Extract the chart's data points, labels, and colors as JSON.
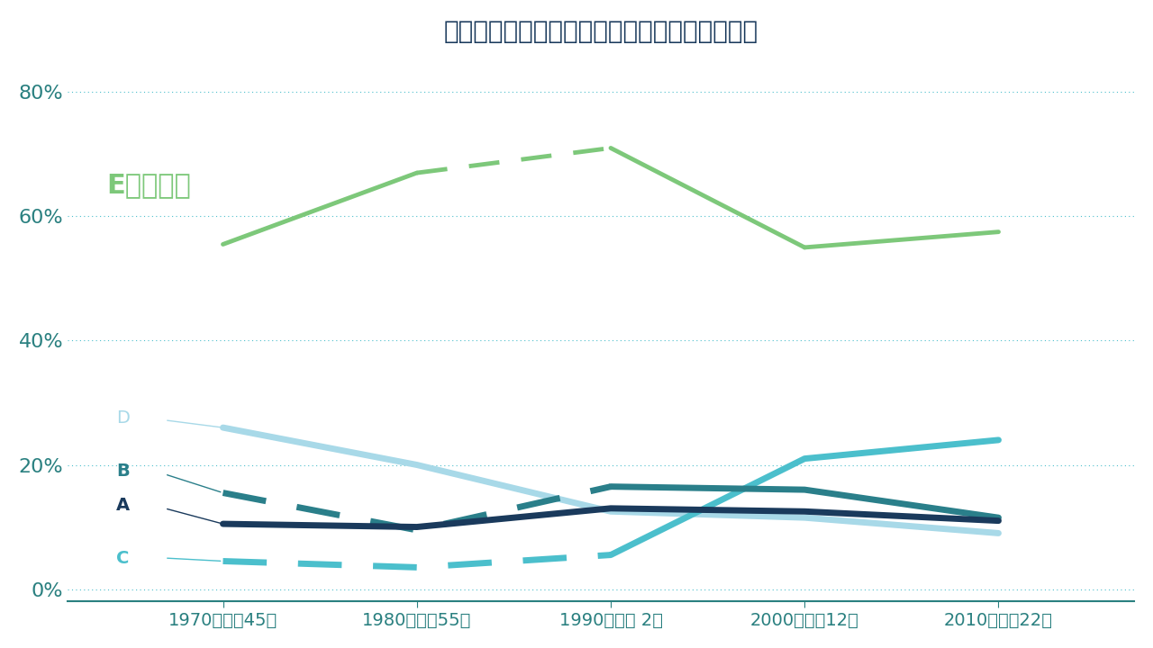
{
  "title": "通勤・通学の利用交通手段別人口割合：東京都",
  "x_labels": [
    "1970（昭和45）",
    "1980（昭和55）",
    "1990（平成 2）",
    "2000（平成12）",
    "2010（平成22）"
  ],
  "x_values": [
    1970,
    1980,
    1990,
    2000,
    2010
  ],
  "series": {
    "E": {
      "values": [
        55.5,
        67.0,
        71.0,
        55.0,
        57.5
      ],
      "color": "#7dc87a",
      "linewidth": 3.5
    },
    "A": {
      "values": [
        10.5,
        10.0,
        13.0,
        12.5,
        11.0
      ],
      "color": "#1a3a5c",
      "linewidth": 5.0
    },
    "B": {
      "values": [
        15.5,
        9.5,
        16.5,
        16.0,
        11.5
      ],
      "color": "#2a7f8a",
      "linewidth": 5.0
    },
    "C": {
      "values": [
        4.5,
        3.5,
        5.5,
        21.0,
        24.0
      ],
      "color": "#4bbfcc",
      "linewidth": 5.0
    },
    "D": {
      "values": [
        26.0,
        20.0,
        12.5,
        11.5,
        9.0
      ],
      "color": "#a8d9e8",
      "linewidth": 5.0
    }
  },
  "yticks": [
    0,
    20,
    40,
    60,
    80
  ],
  "ylim": [
    -2,
    85
  ],
  "xlim": [
    1962,
    2017
  ],
  "background_color": "#ffffff",
  "title_color": "#1a3a5c",
  "tick_color": "#2a8080",
  "grid_color": "#4bbfcc",
  "E_label": "E＝鉄道等",
  "E_label_color": "#7dc87a",
  "label_color_ABCD": "#1a3a5c",
  "label_color_B": "#2a7f8a",
  "label_color_C": "#4bbfcc",
  "label_color_D": "#a8d9e8"
}
